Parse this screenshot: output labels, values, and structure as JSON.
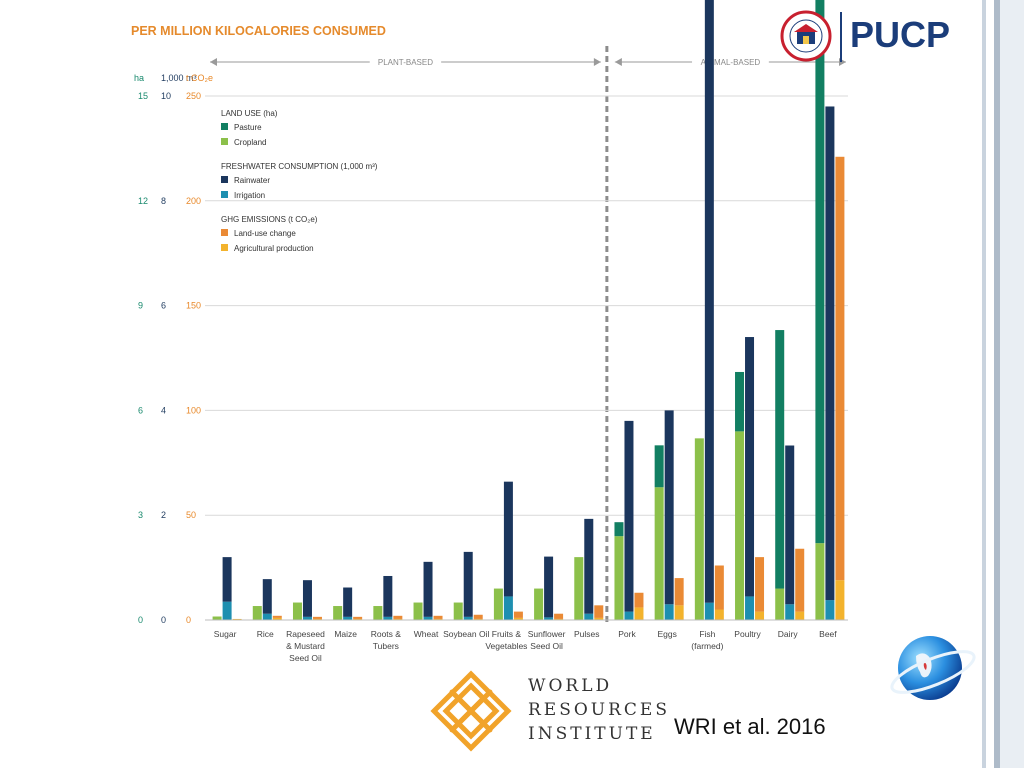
{
  "chart_data": {
    "type": "bar",
    "title": "PER MILLION KILOCALORIES CONSUMED",
    "sections": [
      {
        "label": "PLANT-BASED",
        "categories": [
          "Sugar",
          "Rice",
          "Rapeseed & Mustard Seed Oil",
          "Maize",
          "Roots & Tubers",
          "Wheat",
          "Soybean Oil",
          "Fruits & Vegetables",
          "Sunflower Seed Oil",
          "Pulses"
        ]
      },
      {
        "label": "ANIMAL-BASED",
        "categories": [
          "Pork",
          "Eggs",
          "Fish (farmed)",
          "Poultry",
          "Dairy",
          "Beef"
        ]
      }
    ],
    "categories": [
      "Sugar",
      "Rice",
      "Rapeseed & Mustard Seed Oil",
      "Maize",
      "Roots & Tubers",
      "Wheat",
      "Soybean Oil",
      "Fruits & Vegetables",
      "Sunflower Seed Oil",
      "Pulses",
      "Pork",
      "Eggs",
      "Fish (farmed)",
      "Poultry",
      "Dairy",
      "Beef"
    ],
    "category_lines": [
      [
        "Sugar"
      ],
      [
        "Rice"
      ],
      [
        "Rapeseed",
        "& Mustard",
        "Seed Oil"
      ],
      [
        "Maize"
      ],
      [
        "Roots &",
        "Tubers"
      ],
      [
        "Wheat"
      ],
      [
        "Soybean Oil"
      ],
      [
        "Fruits &",
        "Vegetables"
      ],
      [
        "Sunflower",
        "Seed Oil"
      ],
      [
        "Pulses"
      ],
      [
        "Pork"
      ],
      [
        "Eggs"
      ],
      [
        "Fish",
        "(farmed)"
      ],
      [
        "Poultry"
      ],
      [
        "Dairy"
      ],
      [
        "Beef"
      ]
    ],
    "axes": [
      {
        "unit": "ha",
        "ticks": [
          0,
          3,
          6,
          9,
          12,
          15
        ],
        "color": "#1a8a6e"
      },
      {
        "unit": "1,000 m³",
        "ticks": [
          0,
          2,
          4,
          6,
          8,
          10
        ],
        "color": "#1f3b5f"
      },
      {
        "unit": "t CO₂e",
        "ticks": [
          0,
          50,
          100,
          150,
          200,
          250
        ],
        "color": "#e8892a"
      }
    ],
    "ylim": [
      0,
      250
    ],
    "legend": {
      "position": "top-left",
      "groups": [
        {
          "heading": "LAND USE (ha)",
          "items": [
            {
              "name": "Pasture",
              "color": "#127f62"
            },
            {
              "name": "Cropland",
              "color": "#8cc04a"
            }
          ]
        },
        {
          "heading": "FRESHWATER CONSUMPTION (1,000 m³)",
          "items": [
            {
              "name": "Rainwater",
              "color": "#1b365d"
            },
            {
              "name": "Irrigation",
              "color": "#1e8fb0"
            }
          ]
        },
        {
          "heading": "GHG EMISSIONS (t CO₂e)",
          "items": [
            {
              "name": "Land-use change",
              "color": "#ea8a35"
            },
            {
              "name": "Agricultural production",
              "color": "#f3b32d"
            }
          ]
        }
      ]
    },
    "series": [
      {
        "name": "Cropland",
        "axis": "ha",
        "values": [
          0.1,
          0.4,
          0.5,
          0.4,
          0.4,
          0.5,
          0.5,
          0.9,
          0.9,
          1.8,
          2.4,
          3.8,
          5.2,
          5.4,
          0.9,
          2.2
        ]
      },
      {
        "name": "Pasture",
        "axis": "ha",
        "values": [
          0,
          0,
          0,
          0,
          0,
          0,
          0,
          0,
          0,
          0,
          0.4,
          1.2,
          0,
          1.7,
          7.4,
          50.2
        ]
      },
      {
        "name": "Irrigation",
        "axis": "1,000 m³",
        "values": [
          0.35,
          0.12,
          0.06,
          0.06,
          0.06,
          0.06,
          0.06,
          0.45,
          0.05,
          0.12,
          0.16,
          0.3,
          0.33,
          0.45,
          0.3,
          0.38
        ]
      },
      {
        "name": "Rainwater",
        "axis": "1,000 m³",
        "values": [
          0.85,
          0.66,
          0.7,
          0.56,
          0.78,
          1.05,
          1.24,
          2.19,
          1.16,
          1.81,
          3.64,
          3.7,
          11.96,
          4.95,
          3.03,
          9.42
        ]
      },
      {
        "name": "Agricultural production",
        "axis": "t CO₂e",
        "values": [
          0.5,
          1,
          0.5,
          0.5,
          0.5,
          0.5,
          0.5,
          1,
          0.5,
          1,
          6,
          7,
          5,
          4,
          4,
          19
        ]
      },
      {
        "name": "Land-use change",
        "axis": "t CO₂e",
        "values": [
          0,
          1,
          1,
          1,
          1.5,
          1.5,
          2,
          3,
          2.5,
          6,
          7,
          13,
          21,
          26,
          30,
          202
        ]
      }
    ]
  },
  "logos": {
    "pucp": "PUCP",
    "pucp_seal_text": "ET LUX IN TENEBRIS LUCET",
    "wri_lines": [
      "WORLD",
      "RESOURCES",
      "INSTITUTE"
    ]
  },
  "credit": "WRI et al. 2016"
}
